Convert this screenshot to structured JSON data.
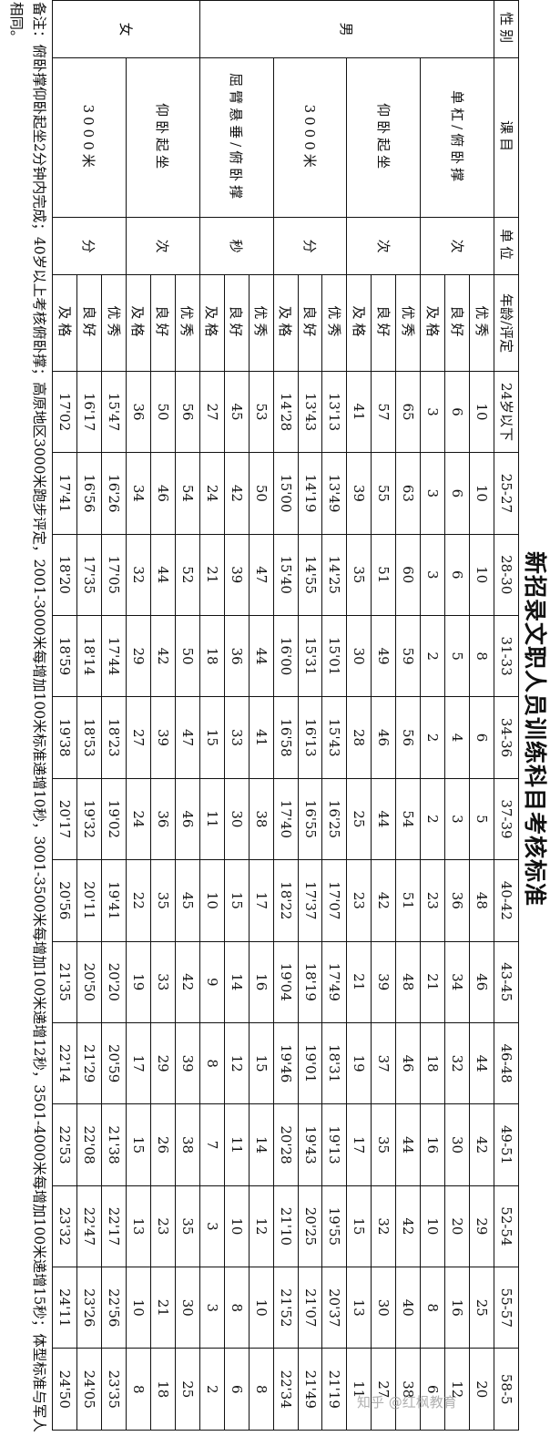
{
  "title": "新招录文职人员训练科目考核标准",
  "header": {
    "gender": "性别",
    "subject": "课目",
    "unit": "单位",
    "age_grade": "年龄/评定",
    "ages": [
      "24岁以下",
      "25-27",
      "28-30",
      "31-33",
      "34-36",
      "37-39",
      "40-42",
      "43-45",
      "46-48",
      "49-51",
      "52-54",
      "55-57",
      "58-5"
    ]
  },
  "groups": [
    {
      "gender": "男",
      "subjects": [
        {
          "name": "单杠/俯卧撑",
          "unit": "次",
          "grades": [
            {
              "level": "优秀",
              "values": [
                "10",
                "10",
                "10",
                "8",
                "6",
                "5",
                "48",
                "46",
                "44",
                "42",
                "29",
                "25",
                "20"
              ]
            },
            {
              "level": "良好",
              "values": [
                "6",
                "6",
                "6",
                "5",
                "4",
                "3",
                "36",
                "34",
                "32",
                "30",
                "20",
                "16",
                "12"
              ]
            },
            {
              "level": "及格",
              "values": [
                "3",
                "3",
                "3",
                "2",
                "2",
                "2",
                "23",
                "21",
                "18",
                "16",
                "10",
                "8",
                "6"
              ]
            }
          ]
        },
        {
          "name": "仰卧起坐",
          "unit": "次",
          "grades": [
            {
              "level": "优秀",
              "values": [
                "65",
                "63",
                "60",
                "59",
                "56",
                "54",
                "51",
                "48",
                "46",
                "44",
                "42",
                "40",
                "38"
              ]
            },
            {
              "level": "良好",
              "values": [
                "57",
                "55",
                "51",
                "49",
                "46",
                "44",
                "42",
                "39",
                "37",
                "35",
                "32",
                "30",
                "27"
              ]
            },
            {
              "level": "及格",
              "values": [
                "41",
                "39",
                "35",
                "30",
                "28",
                "25",
                "23",
                "21",
                "19",
                "17",
                "15",
                "13",
                "11"
              ]
            }
          ]
        },
        {
          "name": "3000米",
          "unit": "分",
          "grades": [
            {
              "level": "优秀",
              "values": [
                "13'13",
                "13'49",
                "14'25",
                "15'01",
                "15'43",
                "16'25",
                "17'07",
                "17'49",
                "18'31",
                "19'13",
                "19'55",
                "20'37",
                "21'19"
              ]
            },
            {
              "level": "良好",
              "values": [
                "13'43",
                "14'19",
                "14'55",
                "15'31",
                "16'13",
                "16'55",
                "17'37",
                "18'19",
                "19'01",
                "19'43",
                "20'25",
                "21'07",
                "21'49"
              ]
            },
            {
              "level": "及格",
              "values": [
                "14'28",
                "15'00",
                "15'40",
                "16'00",
                "16'58",
                "17'40",
                "18'22",
                "19'04",
                "19'46",
                "20'28",
                "21'10",
                "21'52",
                "22'34"
              ]
            }
          ]
        },
        {
          "name": "屈臂悬垂/俯卧撑",
          "unit": "秒",
          "grades": [
            {
              "level": "优秀",
              "values": [
                "53",
                "50",
                "47",
                "44",
                "41",
                "38",
                "17",
                "16",
                "15",
                "14",
                "12",
                "10",
                "8"
              ]
            },
            {
              "level": "良好",
              "values": [
                "45",
                "42",
                "39",
                "36",
                "33",
                "30",
                "15",
                "14",
                "12",
                "11",
                "10",
                "8",
                "6"
              ]
            },
            {
              "level": "及格",
              "values": [
                "27",
                "24",
                "21",
                "18",
                "15",
                "11",
                "10",
                "9",
                "8",
                "7",
                "3",
                "3",
                "2"
              ]
            }
          ]
        }
      ]
    },
    {
      "gender": "女",
      "subjects": [
        {
          "name": "仰卧起坐",
          "unit": "次",
          "grades": [
            {
              "level": "优秀",
              "values": [
                "56",
                "54",
                "52",
                "50",
                "47",
                "46",
                "45",
                "42",
                "39",
                "38",
                "35",
                "30",
                "25"
              ]
            },
            {
              "level": "良好",
              "values": [
                "50",
                "46",
                "44",
                "42",
                "39",
                "36",
                "35",
                "33",
                "29",
                "26",
                "23",
                "21",
                "18"
              ]
            },
            {
              "level": "及格",
              "values": [
                "36",
                "34",
                "32",
                "29",
                "27",
                "24",
                "22",
                "19",
                "17",
                "15",
                "13",
                "10",
                "8"
              ]
            }
          ]
        },
        {
          "name": "3000米",
          "unit": "分",
          "grades": [
            {
              "level": "优秀",
              "values": [
                "15'47",
                "16'26",
                "17'05",
                "17'44",
                "18'23",
                "19'02",
                "19'41",
                "20'20",
                "20'59",
                "21'38",
                "22'17",
                "22'56",
                "23'35"
              ]
            },
            {
              "level": "良好",
              "values": [
                "16'17",
                "16'56",
                "17'35",
                "18'14",
                "18'53",
                "19'32",
                "20'11",
                "20'50",
                "21'29",
                "22'08",
                "22'47",
                "23'26",
                "24'05"
              ]
            },
            {
              "level": "及格",
              "values": [
                "17'02",
                "17'41",
                "18'20",
                "18'59",
                "19'38",
                "20'17",
                "20'56",
                "21'35",
                "22'14",
                "22'53",
                "23'32",
                "24'11",
                "24'50"
              ]
            }
          ]
        }
      ]
    }
  ],
  "notes": "备注：俯卧撑仰卧起坐2分钟内完成；40岁以上考核俯卧撑；高原地区3000米跑步评定，2001-3000米每增加100米标准递增10秒，3001-3500米每增加100米递增12秒，3501-4000米每增加100米递增15秒；体型标准与军人相同。",
  "watermark": "知乎 @红枫教育"
}
